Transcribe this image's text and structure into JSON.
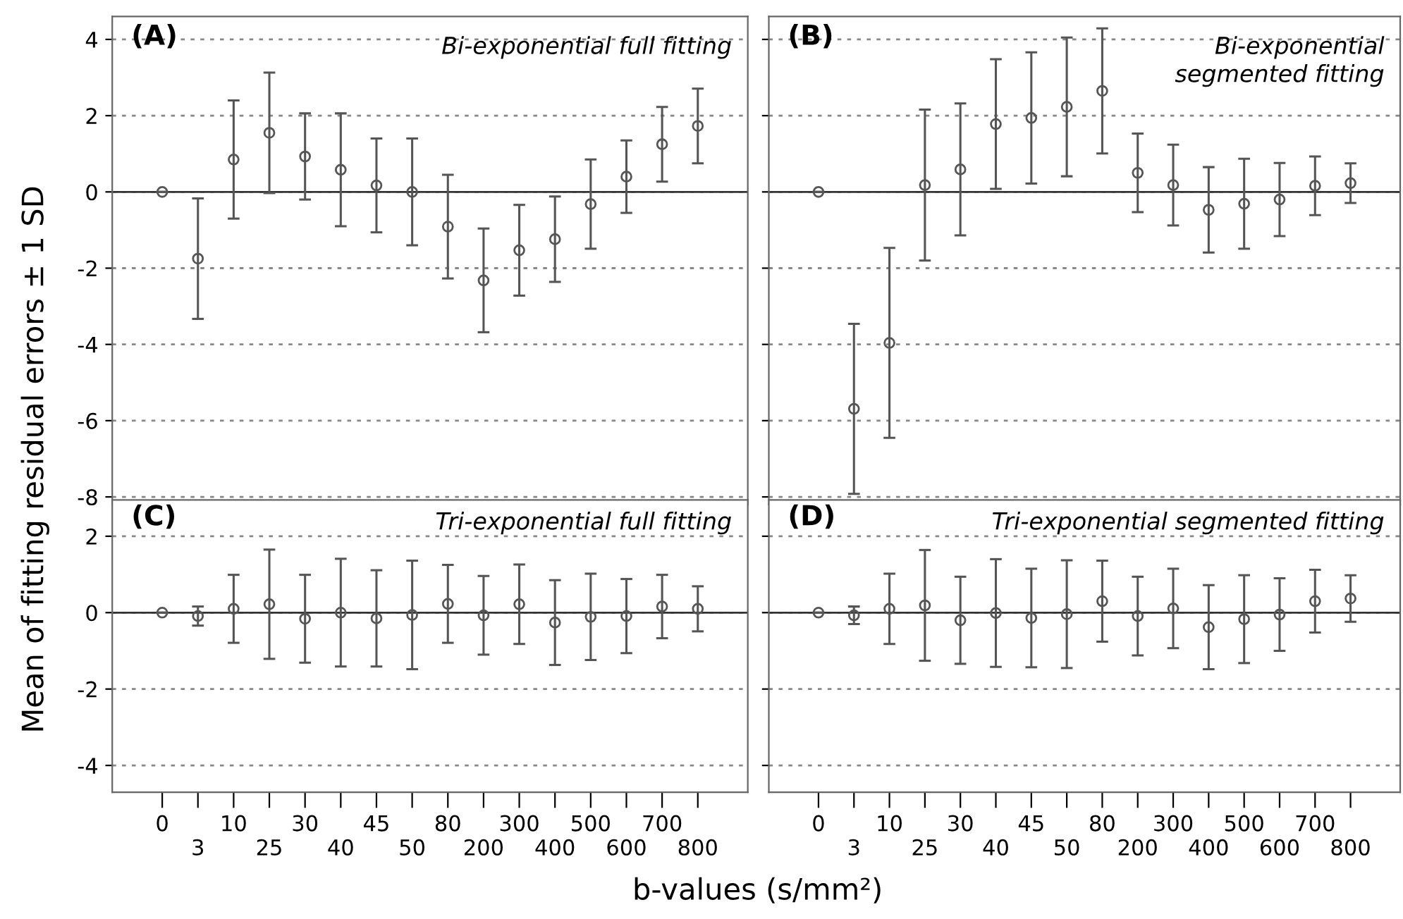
{
  "chart_data": [
    {
      "type": "scatter",
      "title": "Bi-exponential full fitting",
      "annotations": [
        "(A)"
      ],
      "ylabel": "Mean of fitting residual errors ± 1 SD",
      "categories": [
        "0",
        "3",
        "10",
        "25",
        "30",
        "40",
        "45",
        "50",
        "80",
        "200",
        "300",
        "400",
        "500",
        "600",
        "700",
        "800"
      ],
      "values": [
        0,
        -1.75,
        0.85,
        1.55,
        0.93,
        0.58,
        0.17,
        0,
        -0.91,
        -2.32,
        -1.53,
        -1.24,
        -0.32,
        0.4,
        1.25,
        1.73
      ],
      "errors": [
        0,
        1.58,
        1.55,
        1.58,
        1.13,
        1.48,
        1.23,
        1.4,
        1.36,
        1.36,
        1.19,
        1.12,
        1.17,
        0.95,
        0.98,
        0.98
      ],
      "color": "#555555",
      "marker": "circle",
      "ylim": [
        -8.2,
        4.6
      ],
      "yticks": [
        -8,
        -6,
        -4,
        -2,
        0,
        2,
        4
      ],
      "grid": "y",
      "tick_labels": "y",
      "ref_lines": [
        {
          "axis": "y",
          "value": 0
        }
      ]
    },
    {
      "type": "scatter",
      "title": "Bi-exponential\nsegmented fitting",
      "annotations": [
        "(B)"
      ],
      "categories": [
        "0",
        "3",
        "10",
        "25",
        "30",
        "40",
        "45",
        "50",
        "80",
        "200",
        "300",
        "400",
        "500",
        "600",
        "700",
        "800"
      ],
      "values": [
        0,
        -5.69,
        -3.96,
        0.18,
        0.59,
        1.78,
        1.94,
        2.23,
        2.65,
        0.5,
        0.18,
        -0.47,
        -0.31,
        -0.2,
        0.16,
        0.23
      ],
      "errors": [
        0,
        2.23,
        2.49,
        1.98,
        1.73,
        1.7,
        1.72,
        1.82,
        1.64,
        1.03,
        1.06,
        1.12,
        1.18,
        0.96,
        0.77,
        0.52
      ],
      "color": "#555555",
      "marker": "circle",
      "ylim": [
        -8.2,
        4.6
      ],
      "yticks": [
        -8,
        -6,
        -4,
        -2,
        0,
        2,
        4
      ],
      "grid": "y",
      "tick_labels": false,
      "ref_lines": [
        {
          "axis": "y",
          "value": 0
        }
      ]
    },
    {
      "type": "scatter",
      "title": "Tri-exponential full fitting",
      "annotations": [
        "(C)"
      ],
      "xlabel": "b-values (s/mm²)",
      "categories": [
        "0",
        "3",
        "10",
        "25",
        "30",
        "40",
        "45",
        "50",
        "80",
        "200",
        "300",
        "400",
        "500",
        "600",
        "700",
        "800"
      ],
      "values": [
        0,
        -0.09,
        0.1,
        0.22,
        -0.16,
        0,
        -0.15,
        -0.06,
        0.23,
        -0.07,
        0.22,
        -0.26,
        -0.11,
        -0.09,
        0.16,
        0.1
      ],
      "errors": [
        0,
        0.25,
        0.89,
        1.43,
        1.15,
        1.41,
        1.26,
        1.42,
        1.02,
        1.03,
        1.04,
        1.11,
        1.13,
        0.97,
        0.83,
        0.59
      ],
      "color": "#555555",
      "marker": "circle",
      "ylim": [
        -4.7,
        2.95
      ],
      "yticks": [
        -4,
        -2,
        0,
        2
      ],
      "grid": "y",
      "ref_lines": [
        {
          "axis": "y",
          "value": 0
        }
      ]
    },
    {
      "type": "scatter",
      "title": "Tri-exponential segmented fitting",
      "annotations": [
        "(D)"
      ],
      "categories": [
        "0",
        "3",
        "10",
        "25",
        "30",
        "40",
        "45",
        "50",
        "80",
        "200",
        "300",
        "400",
        "500",
        "600",
        "700",
        "800"
      ],
      "values": [
        0,
        -0.07,
        0.1,
        0.19,
        -0.2,
        -0.01,
        -0.14,
        -0.04,
        0.3,
        -0.09,
        0.11,
        -0.38,
        -0.17,
        -0.05,
        0.3,
        0.37
      ],
      "errors": [
        0,
        0.23,
        0.92,
        1.45,
        1.14,
        1.41,
        1.29,
        1.41,
        1.06,
        1.03,
        1.04,
        1.1,
        1.15,
        0.95,
        0.82,
        0.61
      ],
      "color": "#555555",
      "marker": "circle",
      "ylim": [
        -4.7,
        2.95
      ],
      "yticks": [
        -4,
        -2,
        0,
        2
      ],
      "grid": "y",
      "tick_labels": "x",
      "ref_lines": [
        {
          "axis": "y",
          "value": 0
        }
      ]
    }
  ]
}
